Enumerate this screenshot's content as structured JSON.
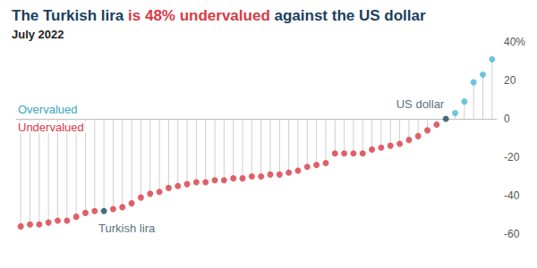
{
  "chart_data": {
    "type": "lollipop",
    "title": [
      {
        "text": "The Turkish lira ",
        "color": "#1b3f5e"
      },
      {
        "text": "is 48% undervalued",
        "color": "#d93a45"
      },
      {
        "text": " against the US dollar",
        "color": "#1b3f5e"
      }
    ],
    "subtitle": "July 2022",
    "annotations": [
      {
        "text": "Overvalued",
        "color": "#3aa6c4"
      },
      {
        "text": "Undervalued",
        "color": "#d93a45"
      }
    ],
    "categories": [
      null,
      null,
      null,
      null,
      null,
      null,
      null,
      null,
      null,
      "Turkish lira",
      null,
      null,
      null,
      null,
      null,
      null,
      null,
      null,
      null,
      null,
      null,
      null,
      null,
      null,
      null,
      null,
      null,
      null,
      null,
      null,
      null,
      null,
      null,
      null,
      null,
      null,
      null,
      null,
      null,
      null,
      null,
      null,
      null,
      null,
      null,
      null,
      "US dollar",
      null,
      null,
      null,
      null,
      null
    ],
    "values": [
      -56,
      -55,
      -55,
      -54,
      -53,
      -53,
      -51,
      -49,
      -48,
      -48,
      -47,
      -46,
      -44,
      -41,
      -39,
      -38,
      -36,
      -35,
      -34,
      -33,
      -33,
      -32,
      -32,
      -31,
      -31,
      -30,
      -30,
      -29,
      -29,
      -28,
      -27,
      -25,
      -24,
      -23,
      -18,
      -18,
      -18,
      -18,
      -16,
      -15,
      -14,
      -13,
      -11,
      -9,
      -6,
      -3,
      0,
      3,
      9,
      19,
      23,
      31
    ],
    "colors": [
      "#d93a45",
      "#d93a45",
      "#d93a45",
      "#d93a45",
      "#d93a45",
      "#d93a45",
      "#d93a45",
      "#d93a45",
      "#d93a45",
      "#1f4a5c",
      "#d93a45",
      "#d93a45",
      "#d93a45",
      "#d93a45",
      "#d93a45",
      "#d93a45",
      "#d93a45",
      "#d93a45",
      "#d93a45",
      "#d93a45",
      "#d93a45",
      "#d93a45",
      "#d93a45",
      "#d93a45",
      "#d93a45",
      "#d93a45",
      "#d93a45",
      "#d93a45",
      "#d93a45",
      "#d93a45",
      "#d93a45",
      "#d93a45",
      "#d93a45",
      "#d93a45",
      "#d93a45",
      "#d93a45",
      "#d93a45",
      "#d93a45",
      "#d93a45",
      "#d93a45",
      "#d93a45",
      "#d93a45",
      "#d93a45",
      "#d93a45",
      "#d93a45",
      "#d93a45",
      "#1f4a5c",
      "#4bb8d8",
      "#4bb8d8",
      "#4bb8d8",
      "#4bb8d8",
      "#4bb8d8"
    ],
    "ylim": [
      -60,
      40
    ],
    "yticks": [
      -60,
      -40,
      -20,
      0,
      20,
      {
        "value": 40,
        "label": "40%"
      }
    ],
    "grid": false,
    "tick_labels": "y"
  }
}
